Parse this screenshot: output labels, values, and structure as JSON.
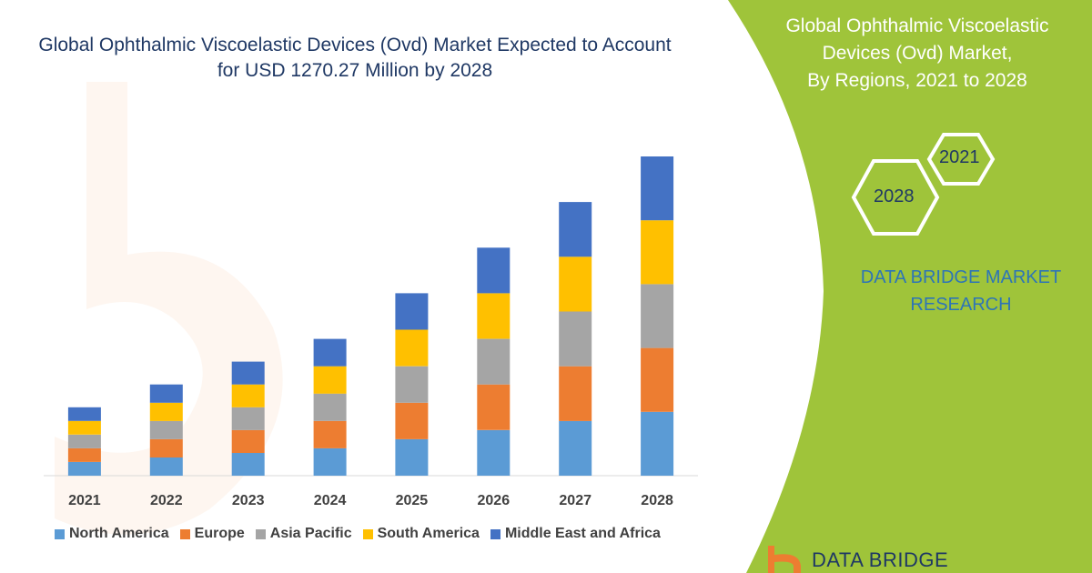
{
  "chart_data": {
    "type": "bar",
    "stacked": true,
    "title": "Global Ophthalmic Viscoelastic Devices (Ovd) Market Expected to Account for USD 1270.27 Million by 2028",
    "categories": [
      "2021",
      "2022",
      "2023",
      "2024",
      "2025",
      "2026",
      "2027",
      "2028"
    ],
    "series": [
      {
        "name": "North America",
        "color": "#5b9bd5",
        "values": [
          15,
          20,
          25,
          30,
          40,
          50,
          60,
          70
        ]
      },
      {
        "name": "Europe",
        "color": "#ed7d31",
        "values": [
          15,
          20,
          25,
          30,
          40,
          50,
          60,
          70
        ]
      },
      {
        "name": "Asia Pacific",
        "color": "#a5a5a5",
        "values": [
          15,
          20,
          25,
          30,
          40,
          50,
          60,
          70
        ]
      },
      {
        "name": "South America",
        "color": "#ffc000",
        "values": [
          15,
          20,
          25,
          30,
          40,
          50,
          60,
          70
        ]
      },
      {
        "name": "Middle East and Africa",
        "color": "#4472c4",
        "values": [
          15,
          20,
          25,
          30,
          40,
          50,
          60,
          70
        ]
      }
    ],
    "ylim": [
      0,
      350
    ],
    "grid": false,
    "legend_position": "bottom"
  },
  "panel": {
    "title_lines": [
      "Global Ophthalmic Viscoelastic",
      "Devices (Ovd) Market,",
      "By Regions, 2021 to 2028"
    ],
    "hex_labels": [
      "2021",
      "2028"
    ],
    "brand_lines": [
      "DATA BRIDGE MARKET",
      "RESEARCH"
    ],
    "accent_color": "#9fc43a"
  },
  "footer": {
    "logo_text": "DATA BRIDGE"
  }
}
